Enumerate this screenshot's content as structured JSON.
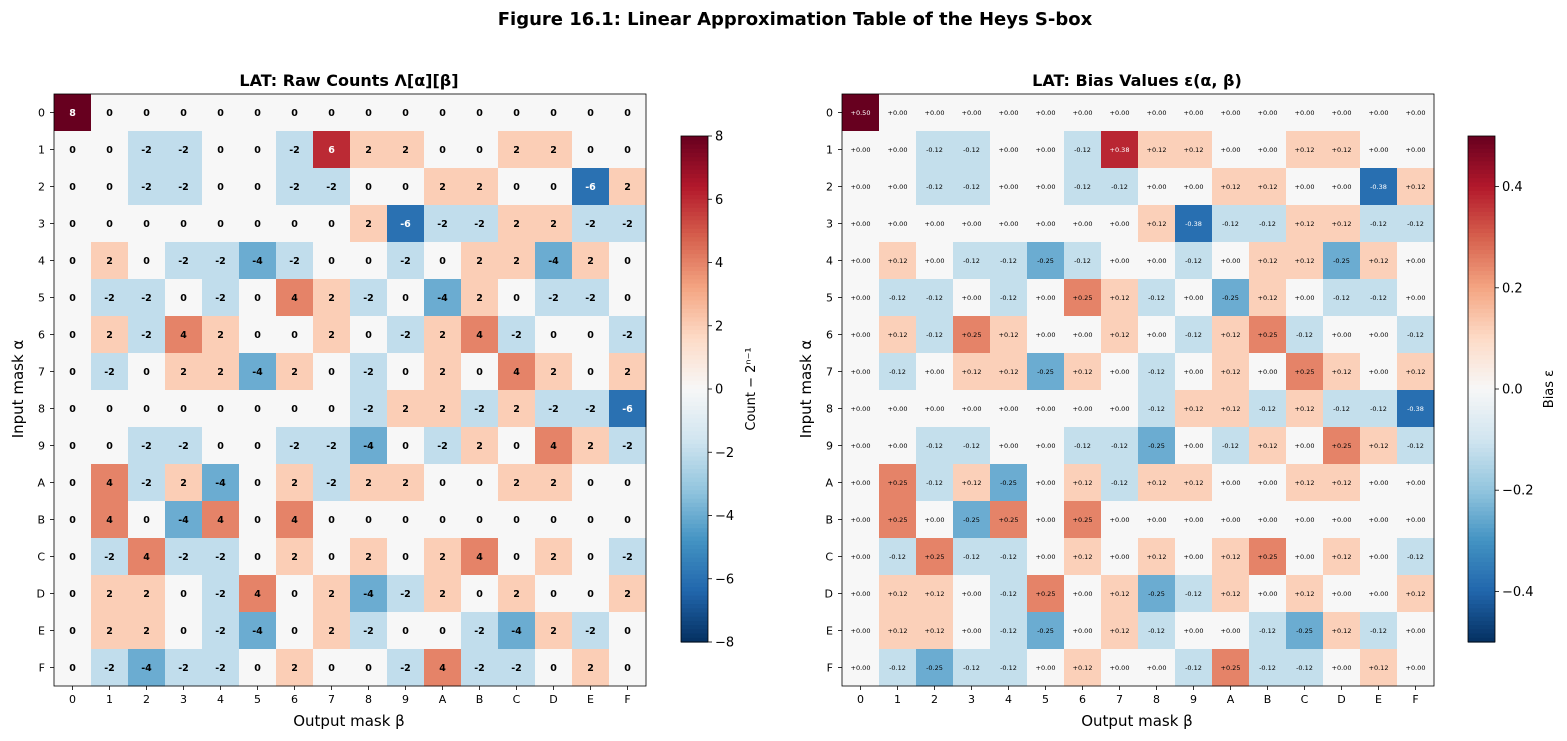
{
  "figure_title": "Figure 16.1: Linear Approximation Table of the Heys S-box",
  "chart_data": [
    {
      "type": "heatmap",
      "title": "LAT: Raw Counts Λ[α][β]",
      "xlabel": "Output mask β",
      "ylabel": "Input mask α",
      "x_categories": [
        "0",
        "1",
        "2",
        "3",
        "4",
        "5",
        "6",
        "7",
        "8",
        "9",
        "A",
        "B",
        "C",
        "D",
        "E",
        "F"
      ],
      "y_categories": [
        "0",
        "1",
        "2",
        "3",
        "4",
        "5",
        "6",
        "7",
        "8",
        "9",
        "A",
        "B",
        "C",
        "D",
        "E",
        "F"
      ],
      "colorbar": {
        "label": "Count − 2ⁿ⁻¹",
        "range": [
          -8,
          8
        ],
        "ticks": [
          -8,
          -6,
          -4,
          -2,
          0,
          2,
          4,
          6,
          8
        ],
        "tick_labels": [
          "−8",
          "−6",
          "−4",
          "−2",
          "0",
          "2",
          "4",
          "6",
          "8"
        ],
        "colormap": "RdBu_r"
      },
      "value_format": "int",
      "values": [
        [
          8,
          0,
          0,
          0,
          0,
          0,
          0,
          0,
          0,
          0,
          0,
          0,
          0,
          0,
          0,
          0
        ],
        [
          0,
          0,
          -2,
          -2,
          0,
          0,
          -2,
          6,
          2,
          2,
          0,
          0,
          2,
          2,
          0,
          0
        ],
        [
          0,
          0,
          -2,
          -2,
          0,
          0,
          -2,
          -2,
          0,
          0,
          2,
          2,
          0,
          0,
          -6,
          2
        ],
        [
          0,
          0,
          0,
          0,
          0,
          0,
          0,
          0,
          2,
          -6,
          -2,
          -2,
          2,
          2,
          -2,
          -2
        ],
        [
          0,
          2,
          0,
          -2,
          -2,
          -4,
          -2,
          0,
          0,
          -2,
          0,
          2,
          2,
          -4,
          2,
          0
        ],
        [
          0,
          -2,
          -2,
          0,
          -2,
          0,
          4,
          2,
          -2,
          0,
          -4,
          2,
          0,
          -2,
          -2,
          0
        ],
        [
          0,
          2,
          -2,
          4,
          2,
          0,
          0,
          2,
          0,
          -2,
          2,
          4,
          -2,
          0,
          0,
          -2
        ],
        [
          0,
          -2,
          0,
          2,
          2,
          -4,
          2,
          0,
          -2,
          0,
          2,
          0,
          4,
          2,
          0,
          2
        ],
        [
          0,
          0,
          0,
          0,
          0,
          0,
          0,
          0,
          -2,
          2,
          2,
          -2,
          2,
          -2,
          -2,
          -6
        ],
        [
          0,
          0,
          -2,
          -2,
          0,
          0,
          -2,
          -2,
          -4,
          0,
          -2,
          2,
          0,
          4,
          2,
          -2
        ],
        [
          0,
          4,
          -2,
          2,
          -4,
          0,
          2,
          -2,
          2,
          2,
          0,
          0,
          2,
          2,
          0,
          0
        ],
        [
          0,
          4,
          0,
          -4,
          4,
          0,
          4,
          0,
          0,
          0,
          0,
          0,
          0,
          0,
          0,
          0
        ],
        [
          0,
          -2,
          4,
          -2,
          -2,
          0,
          2,
          0,
          2,
          0,
          2,
          4,
          0,
          2,
          0,
          -2
        ],
        [
          0,
          2,
          2,
          0,
          -2,
          4,
          0,
          2,
          -4,
          -2,
          2,
          0,
          2,
          0,
          0,
          2
        ],
        [
          0,
          2,
          2,
          0,
          -2,
          -4,
          0,
          2,
          -2,
          0,
          0,
          -2,
          -4,
          2,
          -2,
          0
        ],
        [
          0,
          -2,
          -4,
          -2,
          -2,
          0,
          2,
          0,
          0,
          -2,
          4,
          -2,
          -2,
          0,
          2,
          0
        ]
      ]
    },
    {
      "type": "heatmap",
      "title": "LAT: Bias Values ε(α, β)",
      "xlabel": "Output mask β",
      "ylabel": "Input mask α",
      "x_categories": [
        "0",
        "1",
        "2",
        "3",
        "4",
        "5",
        "6",
        "7",
        "8",
        "9",
        "A",
        "B",
        "C",
        "D",
        "E",
        "F"
      ],
      "y_categories": [
        "0",
        "1",
        "2",
        "3",
        "4",
        "5",
        "6",
        "7",
        "8",
        "9",
        "A",
        "B",
        "C",
        "D",
        "E",
        "F"
      ],
      "colorbar": {
        "label": "Bias ε",
        "range": [
          -0.5,
          0.5
        ],
        "ticks": [
          -0.4,
          -0.2,
          0.0,
          0.2,
          0.4
        ],
        "tick_labels": [
          "−0.4",
          "−0.2",
          "0.0",
          "0.2",
          "0.4"
        ],
        "colormap": "RdBu_r"
      },
      "value_format": "signed2",
      "values": [
        [
          0.5,
          0,
          0,
          0,
          0,
          0,
          0,
          0,
          0,
          0,
          0,
          0,
          0,
          0,
          0,
          0
        ],
        [
          0,
          0,
          -0.12,
          -0.12,
          0,
          0,
          -0.12,
          0.38,
          0.12,
          0.12,
          0,
          0,
          0.12,
          0.12,
          0,
          0
        ],
        [
          0,
          0,
          -0.12,
          -0.12,
          0,
          0,
          -0.12,
          -0.12,
          0,
          0,
          0.12,
          0.12,
          0,
          0,
          -0.38,
          0.12
        ],
        [
          0,
          0,
          0,
          0,
          0,
          0,
          0,
          0,
          0.12,
          -0.38,
          -0.12,
          -0.12,
          0.12,
          0.12,
          -0.12,
          -0.12
        ],
        [
          0,
          0.12,
          0,
          -0.12,
          -0.12,
          -0.25,
          -0.12,
          0,
          0,
          -0.12,
          0,
          0.12,
          0.12,
          -0.25,
          0.12,
          0
        ],
        [
          0,
          -0.12,
          -0.12,
          0,
          -0.12,
          0,
          0.25,
          0.12,
          -0.12,
          0,
          -0.25,
          0.12,
          0,
          -0.12,
          -0.12,
          0
        ],
        [
          0,
          0.12,
          -0.12,
          0.25,
          0.12,
          0,
          0,
          0.12,
          0,
          -0.12,
          0.12,
          0.25,
          -0.12,
          0,
          0,
          -0.12
        ],
        [
          0,
          -0.12,
          0,
          0.12,
          0.12,
          -0.25,
          0.12,
          0,
          -0.12,
          0,
          0.12,
          0,
          0.25,
          0.12,
          0,
          0.12
        ],
        [
          0,
          0,
          0,
          0,
          0,
          0,
          0,
          0,
          -0.12,
          0.12,
          0.12,
          -0.12,
          0.12,
          -0.12,
          -0.12,
          -0.38
        ],
        [
          0,
          0,
          -0.12,
          -0.12,
          0,
          0,
          -0.12,
          -0.12,
          -0.25,
          0,
          -0.12,
          0.12,
          0,
          0.25,
          0.12,
          -0.12
        ],
        [
          0,
          0.25,
          -0.12,
          0.12,
          -0.25,
          0,
          0.12,
          -0.12,
          0.12,
          0.12,
          0,
          0,
          0.12,
          0.12,
          0,
          0
        ],
        [
          0,
          0.25,
          0,
          -0.25,
          0.25,
          0,
          0.25,
          0,
          0,
          0,
          0,
          0,
          0,
          0,
          0,
          0
        ],
        [
          0,
          -0.12,
          0.25,
          -0.12,
          -0.12,
          0,
          0.12,
          0,
          0.12,
          0,
          0.12,
          0.25,
          0,
          0.12,
          0,
          -0.12
        ],
        [
          0,
          0.12,
          0.12,
          0,
          -0.12,
          0.25,
          0,
          0.12,
          -0.25,
          -0.12,
          0.12,
          0,
          0.12,
          0,
          0,
          0.12
        ],
        [
          0,
          0.12,
          0.12,
          0,
          -0.12,
          -0.25,
          0,
          0.12,
          -0.12,
          0,
          0,
          -0.12,
          -0.25,
          0.12,
          -0.12,
          0
        ],
        [
          0,
          -0.12,
          -0.25,
          -0.12,
          -0.12,
          0,
          0.12,
          0,
          0,
          -0.12,
          0.25,
          -0.12,
          -0.12,
          0,
          0.12,
          0
        ]
      ]
    }
  ]
}
